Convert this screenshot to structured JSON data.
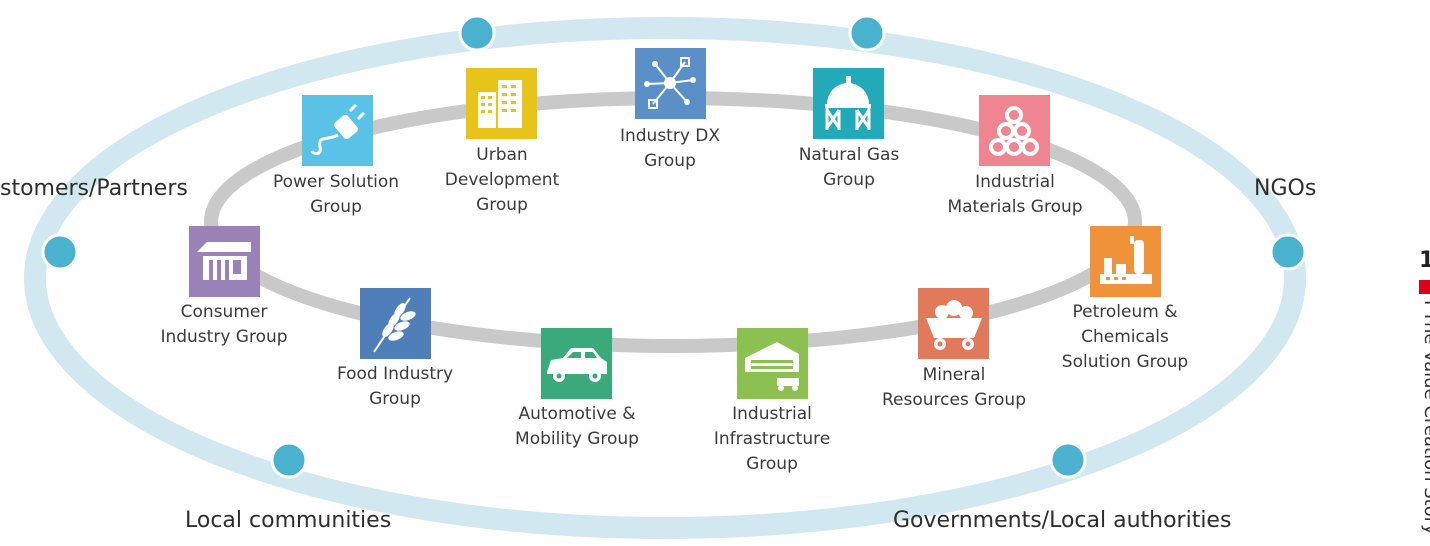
{
  "stakeholders": [
    {
      "id": "customers",
      "label": "stomers/Partners"
    },
    {
      "id": "ngos",
      "label": "NGOs"
    },
    {
      "id": "local",
      "label": "Local communities"
    },
    {
      "id": "gov",
      "label": "Governments/Local authorities"
    }
  ],
  "groups": [
    {
      "id": "power",
      "label_lines": [
        "Power Solution",
        "Group"
      ],
      "color": "#5bc2e7",
      "icon": "plug-icon"
    },
    {
      "id": "urban",
      "label_lines": [
        "Urban",
        "Development",
        "Group"
      ],
      "color": "#e8c31a",
      "icon": "buildings-icon"
    },
    {
      "id": "dx",
      "label_lines": [
        "Industry DX",
        "Group"
      ],
      "color": "#5a8fc8",
      "icon": "network-icon"
    },
    {
      "id": "gas",
      "label_lines": [
        "Natural Gas",
        "Group"
      ],
      "color": "#22aab8",
      "icon": "gas-tank-icon"
    },
    {
      "id": "materials",
      "label_lines": [
        "Industrial",
        "Materials Group"
      ],
      "color": "#ee8590",
      "icon": "pipes-icon"
    },
    {
      "id": "consumer",
      "label_lines": [
        "Consumer",
        "Industry Group"
      ],
      "color": "#9a82b8",
      "icon": "store-icon"
    },
    {
      "id": "food",
      "label_lines": [
        "Food Industry",
        "Group"
      ],
      "color": "#4f7fb9",
      "icon": "wheat-icon"
    },
    {
      "id": "auto",
      "label_lines": [
        "Automotive &",
        "Mobility Group"
      ],
      "color": "#3aaa7a",
      "icon": "car-icon"
    },
    {
      "id": "infra",
      "label_lines": [
        "Industrial",
        "Infrastructure",
        "Group"
      ],
      "color": "#8cc152",
      "icon": "factory-icon"
    },
    {
      "id": "mineral",
      "label_lines": [
        "Mineral",
        "Resources Group"
      ],
      "color": "#e07a5a",
      "icon": "mine-cart-icon"
    },
    {
      "id": "petro",
      "label_lines": [
        "Petroleum &",
        "Chemicals",
        "Solution Group"
      ],
      "color": "#f0923a",
      "icon": "refinery-icon"
    }
  ],
  "sidebar": {
    "page_number": "1",
    "section_title": "I The Value Creation Story"
  },
  "colors": {
    "outer_ring": "#cfe7ef",
    "outer_node": "#4ab2cf",
    "inner_ring": "#c8c8c8"
  }
}
